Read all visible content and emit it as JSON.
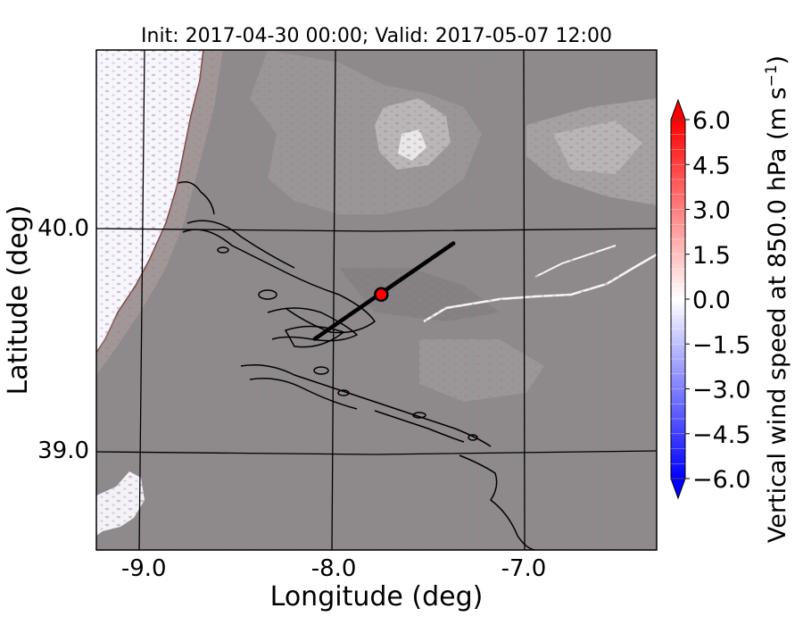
{
  "title": "Init: 2017-04-30 00:00; Valid: 2017-05-07 12:00",
  "x_axis": {
    "label": "Longitude (deg)",
    "ticks": [
      {
        "value": -9.0,
        "label": "-9.0"
      },
      {
        "value": -8.0,
        "label": "-8.0"
      },
      {
        "value": -7.0,
        "label": "-7.0"
      }
    ],
    "range": [
      -9.25,
      -6.3
    ]
  },
  "y_axis": {
    "label": "Latitude (deg)",
    "ticks": [
      {
        "value": 40.0,
        "label": "40.0"
      },
      {
        "value": 39.0,
        "label": "39.0"
      }
    ],
    "range": [
      38.55,
      40.8
    ]
  },
  "colorbar": {
    "label": "Vertical wind speed at 850.0 hPa (m s",
    "label_sup": "−1",
    "label_end": ")",
    "min": -6.0,
    "max": 6.0,
    "extend": "both",
    "low_color": "#0000ff",
    "mid_color": "#ffffff",
    "high_color": "#ff0000",
    "ticks": [
      {
        "value": 6.0,
        "label": "6.0"
      },
      {
        "value": 4.5,
        "label": "4.5"
      },
      {
        "value": 3.0,
        "label": "3.0"
      },
      {
        "value": 1.5,
        "label": "1.5"
      },
      {
        "value": 0.0,
        "label": "0.0"
      },
      {
        "value": -1.5,
        "label": "−1.5"
      },
      {
        "value": -3.0,
        "label": "−3.0"
      },
      {
        "value": -4.5,
        "label": "−4.5"
      },
      {
        "value": -6.0,
        "label": "−6.0"
      }
    ]
  },
  "cross_section": {
    "start": {
      "lon": -8.1,
      "lat": 39.5
    },
    "end": {
      "lon": -7.37,
      "lat": 39.93
    },
    "color": "#000000"
  },
  "marker": {
    "lon": -7.75,
    "lat": 39.7,
    "color": "#ff0000"
  },
  "colors": {
    "terrain": "#8c8a8c",
    "ocean": "#f6f6ff",
    "contour": "#000000"
  }
}
